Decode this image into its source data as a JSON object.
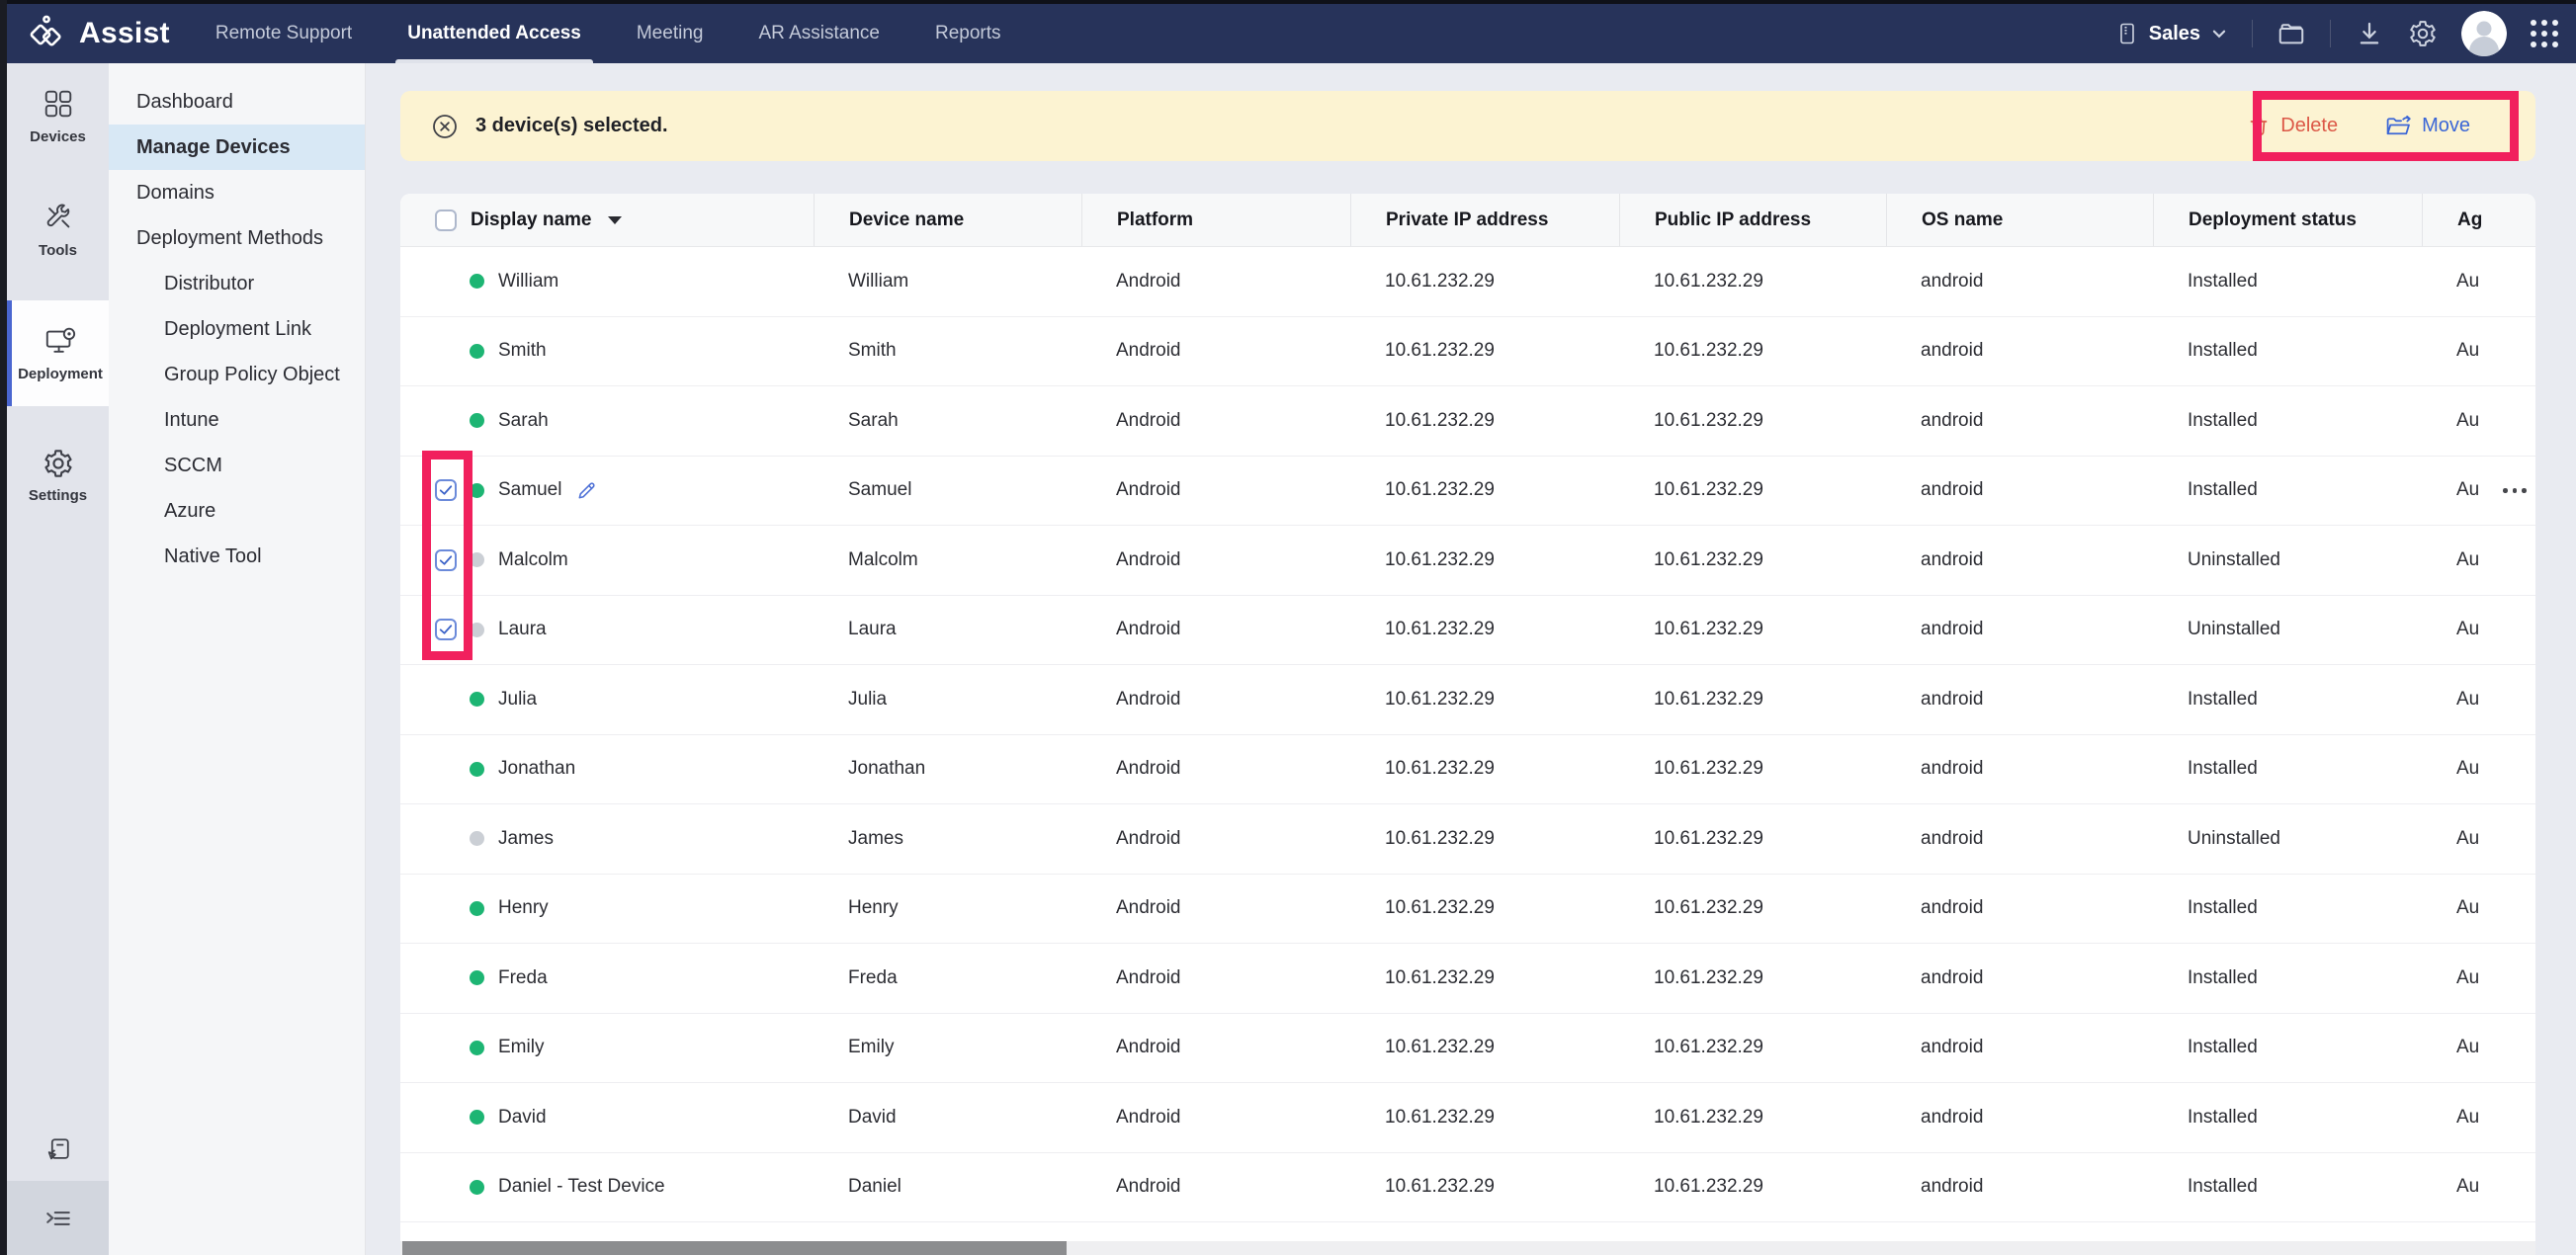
{
  "colors": {
    "navbar_bg": "#27335a",
    "accent_blue": "#3b66d6",
    "delete_red": "#dc5847",
    "annotation_red": "#f1205d",
    "online_green": "#1db573",
    "offline_gray": "#cbcfd5",
    "banner_bg": "#fcf3d2",
    "active_sidebar_bg": "#d8e8f5"
  },
  "navbar": {
    "brand": "Assist",
    "tabs": [
      {
        "label": "Remote Support",
        "active": false
      },
      {
        "label": "Unattended Access",
        "active": true
      },
      {
        "label": "Meeting",
        "active": false
      },
      {
        "label": "AR Assistance",
        "active": false
      },
      {
        "label": "Reports",
        "active": false
      }
    ],
    "portal_label": "Sales",
    "right_icons": [
      "mobile-icon",
      "chevron-down-icon",
      "folder-icon",
      "download-icon",
      "gear-icon",
      "avatar",
      "apps-grid-icon"
    ]
  },
  "rail": {
    "items": [
      {
        "label": "Devices",
        "icon": "devices-grid-icon",
        "active": false
      },
      {
        "label": "Tools",
        "icon": "tools-icon",
        "active": false
      },
      {
        "label": "Deployment",
        "icon": "deployment-monitor-icon",
        "active": true
      },
      {
        "label": "Settings",
        "icon": "settings-gear-icon",
        "active": false
      }
    ],
    "bottom_icons": [
      "feedback-note-icon",
      "collapse-menu-icon"
    ]
  },
  "sidebar": {
    "items": [
      {
        "label": "Dashboard",
        "level": 0,
        "active": false
      },
      {
        "label": "Manage Devices",
        "level": 0,
        "active": true
      },
      {
        "label": "Domains",
        "level": 0,
        "active": false
      },
      {
        "label": "Deployment Methods",
        "level": 0,
        "active": false
      },
      {
        "label": "Distributor",
        "level": 1,
        "active": false
      },
      {
        "label": "Deployment Link",
        "level": 1,
        "active": false
      },
      {
        "label": "Group Policy Object",
        "level": 1,
        "active": false
      },
      {
        "label": "Intune",
        "level": 1,
        "active": false
      },
      {
        "label": "SCCM",
        "level": 1,
        "active": false
      },
      {
        "label": "Azure",
        "level": 1,
        "active": false
      },
      {
        "label": "Native Tool",
        "level": 1,
        "active": false
      }
    ]
  },
  "banner": {
    "message": "3 device(s) selected.",
    "delete_label": "Delete",
    "move_label": "Move"
  },
  "table": {
    "columns": [
      {
        "label": "Display name",
        "sortable": true
      },
      {
        "label": "Device name"
      },
      {
        "label": "Platform"
      },
      {
        "label": "Private IP address"
      },
      {
        "label": "Public IP address"
      },
      {
        "label": "OS name"
      },
      {
        "label": "Deployment status"
      },
      {
        "label": "Ag"
      }
    ],
    "rows": [
      {
        "display_name": "William",
        "device_name": "William",
        "platform": "Android",
        "private_ip": "10.61.232.29",
        "public_ip": "10.61.232.29",
        "os_name": "android",
        "deployment_status": "Installed",
        "agent": "Au",
        "online": true,
        "checked": false,
        "editable": false,
        "menu": false
      },
      {
        "display_name": "Smith",
        "device_name": "Smith",
        "platform": "Android",
        "private_ip": "10.61.232.29",
        "public_ip": "10.61.232.29",
        "os_name": "android",
        "deployment_status": "Installed",
        "agent": "Au",
        "online": true,
        "checked": false,
        "editable": false,
        "menu": false
      },
      {
        "display_name": "Sarah",
        "device_name": "Sarah",
        "platform": "Android",
        "private_ip": "10.61.232.29",
        "public_ip": "10.61.232.29",
        "os_name": "android",
        "deployment_status": "Installed",
        "agent": "Au",
        "online": true,
        "checked": false,
        "editable": false,
        "menu": false
      },
      {
        "display_name": "Samuel",
        "device_name": "Samuel",
        "platform": "Android",
        "private_ip": "10.61.232.29",
        "public_ip": "10.61.232.29",
        "os_name": "android",
        "deployment_status": "Installed",
        "agent": "Au",
        "online": true,
        "checked": true,
        "editable": true,
        "menu": true
      },
      {
        "display_name": "Malcolm",
        "device_name": "Malcolm",
        "platform": "Android",
        "private_ip": "10.61.232.29",
        "public_ip": "10.61.232.29",
        "os_name": "android",
        "deployment_status": "Uninstalled",
        "agent": "Au",
        "online": false,
        "checked": true,
        "editable": false,
        "menu": false
      },
      {
        "display_name": "Laura",
        "device_name": "Laura",
        "platform": "Android",
        "private_ip": "10.61.232.29",
        "public_ip": "10.61.232.29",
        "os_name": "android",
        "deployment_status": "Uninstalled",
        "agent": "Au",
        "online": false,
        "checked": true,
        "editable": false,
        "menu": false
      },
      {
        "display_name": "Julia",
        "device_name": "Julia",
        "platform": "Android",
        "private_ip": "10.61.232.29",
        "public_ip": "10.61.232.29",
        "os_name": "android",
        "deployment_status": "Installed",
        "agent": "Au",
        "online": true,
        "checked": false,
        "editable": false,
        "menu": false
      },
      {
        "display_name": "Jonathan",
        "device_name": "Jonathan",
        "platform": "Android",
        "private_ip": "10.61.232.29",
        "public_ip": "10.61.232.29",
        "os_name": "android",
        "deployment_status": "Installed",
        "agent": "Au",
        "online": true,
        "checked": false,
        "editable": false,
        "menu": false
      },
      {
        "display_name": "James",
        "device_name": "James",
        "platform": "Android",
        "private_ip": "10.61.232.29",
        "public_ip": "10.61.232.29",
        "os_name": "android",
        "deployment_status": "Uninstalled",
        "agent": "Au",
        "online": false,
        "checked": false,
        "editable": false,
        "menu": false
      },
      {
        "display_name": "Henry",
        "device_name": "Henry",
        "platform": "Android",
        "private_ip": "10.61.232.29",
        "public_ip": "10.61.232.29",
        "os_name": "android",
        "deployment_status": "Installed",
        "agent": "Au",
        "online": true,
        "checked": false,
        "editable": false,
        "menu": false
      },
      {
        "display_name": "Freda",
        "device_name": "Freda",
        "platform": "Android",
        "private_ip": "10.61.232.29",
        "public_ip": "10.61.232.29",
        "os_name": "android",
        "deployment_status": "Installed",
        "agent": "Au",
        "online": true,
        "checked": false,
        "editable": false,
        "menu": false
      },
      {
        "display_name": "Emily",
        "device_name": "Emily",
        "platform": "Android",
        "private_ip": "10.61.232.29",
        "public_ip": "10.61.232.29",
        "os_name": "android",
        "deployment_status": "Installed",
        "agent": "Au",
        "online": true,
        "checked": false,
        "editable": false,
        "menu": false
      },
      {
        "display_name": "David",
        "device_name": "David",
        "platform": "Android",
        "private_ip": "10.61.232.29",
        "public_ip": "10.61.232.29",
        "os_name": "android",
        "deployment_status": "Installed",
        "agent": "Au",
        "online": true,
        "checked": false,
        "editable": false,
        "menu": false
      },
      {
        "display_name": "Daniel - Test Device",
        "device_name": "Daniel",
        "platform": "Android",
        "private_ip": "10.61.232.29",
        "public_ip": "10.61.232.29",
        "os_name": "android",
        "deployment_status": "Installed",
        "agent": "Au",
        "online": true,
        "checked": false,
        "editable": false,
        "menu": false
      }
    ]
  }
}
